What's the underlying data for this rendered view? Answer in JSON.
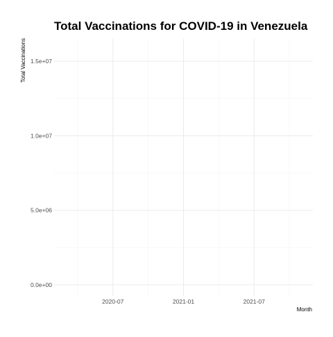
{
  "chart_data": {
    "type": "line",
    "title": "Total Vaccinations for COVID-19 in Venezuela",
    "xlabel": "Month",
    "ylabel": "Total Vaccinations",
    "x_ticks": [
      "2020-07",
      "2021-01",
      "2021-07"
    ],
    "y_ticks": [
      {
        "value": 0,
        "label": "0.0e+00"
      },
      {
        "value": 5000000,
        "label": "5.0e+06"
      },
      {
        "value": 10000000,
        "label": "1.0e+07"
      },
      {
        "value": 15000000,
        "label": "1.5e+07"
      }
    ],
    "xlim": [
      "2020-02",
      "2021-12"
    ],
    "ylim": [
      -750000,
      16500000
    ],
    "grid": true,
    "series": []
  },
  "colors": {
    "grid_major": "#ebebeb",
    "grid_minor": "#f3f3f3",
    "title": "#000000",
    "tick_text": "#4d4d4d",
    "axis_title": "#000000"
  }
}
